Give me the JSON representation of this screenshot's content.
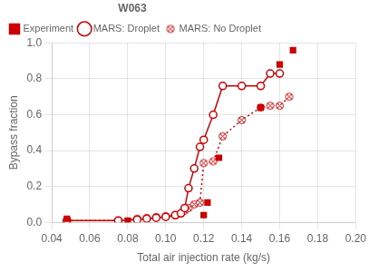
{
  "chart_data": {
    "type": "line",
    "xlabel": "Total air injection rate (kg/s)",
    "ylabel": "Bypass fraction",
    "legend_title": "W063",
    "legend": "upper left",
    "grid": true,
    "xlim": [
      0.04,
      0.2
    ],
    "ylim": [
      0.0,
      1.0
    ],
    "xticks": [
      0.04,
      0.06,
      0.08,
      {
        "value": 0.1,
        "label": "0.10"
      },
      0.12,
      0.14,
      0.16,
      0.18,
      {
        "value": 0.2,
        "label": "0.20"
      }
    ],
    "yticks": [
      {
        "value": 0.0,
        "label": "0.0"
      },
      0.2,
      0.4,
      0.6,
      0.8,
      {
        "value": 1.0,
        "label": "1.0"
      }
    ],
    "series": [
      {
        "name": "Experiment",
        "color": "#cc0000",
        "marker": "square",
        "line_style": "none",
        "x": [
          0.048,
          0.08,
          0.12,
          0.122,
          0.128,
          0.15,
          0.16,
          0.167
        ],
        "values": [
          0.02,
          0.01,
          0.04,
          0.11,
          0.36,
          0.64,
          0.88,
          0.96
        ]
      },
      {
        "name": "MARS: Droplet",
        "color": "#cc0000",
        "marker": "circle",
        "line_style": "solid",
        "x": [
          0.048,
          0.075,
          0.085,
          0.09,
          0.095,
          0.1,
          0.105,
          0.108,
          0.11,
          0.112,
          0.115,
          0.118,
          0.12,
          0.125,
          0.13,
          0.14,
          0.15,
          0.155,
          0.16
        ],
        "values": [
          0.01,
          0.01,
          0.015,
          0.02,
          0.025,
          0.03,
          0.04,
          0.05,
          0.08,
          0.19,
          0.3,
          0.42,
          0.46,
          0.6,
          0.76,
          0.76,
          0.76,
          0.83,
          0.83
        ]
      },
      {
        "name": "MARS: No Droplet",
        "color": "#cc0000",
        "marker": "circle-x",
        "line_style": "dotted",
        "x": [
          0.048,
          0.075,
          0.085,
          0.09,
          0.095,
          0.1,
          0.105,
          0.108,
          0.11,
          0.112,
          0.115,
          0.118,
          0.12,
          0.125,
          0.13,
          0.14,
          0.15,
          0.155,
          0.16,
          0.165
        ],
        "values": [
          0.01,
          0.01,
          0.02,
          0.025,
          0.03,
          0.035,
          0.04,
          0.05,
          0.065,
          0.08,
          0.1,
          0.11,
          0.33,
          0.34,
          0.48,
          0.57,
          0.64,
          0.65,
          0.65,
          0.7
        ]
      }
    ]
  }
}
